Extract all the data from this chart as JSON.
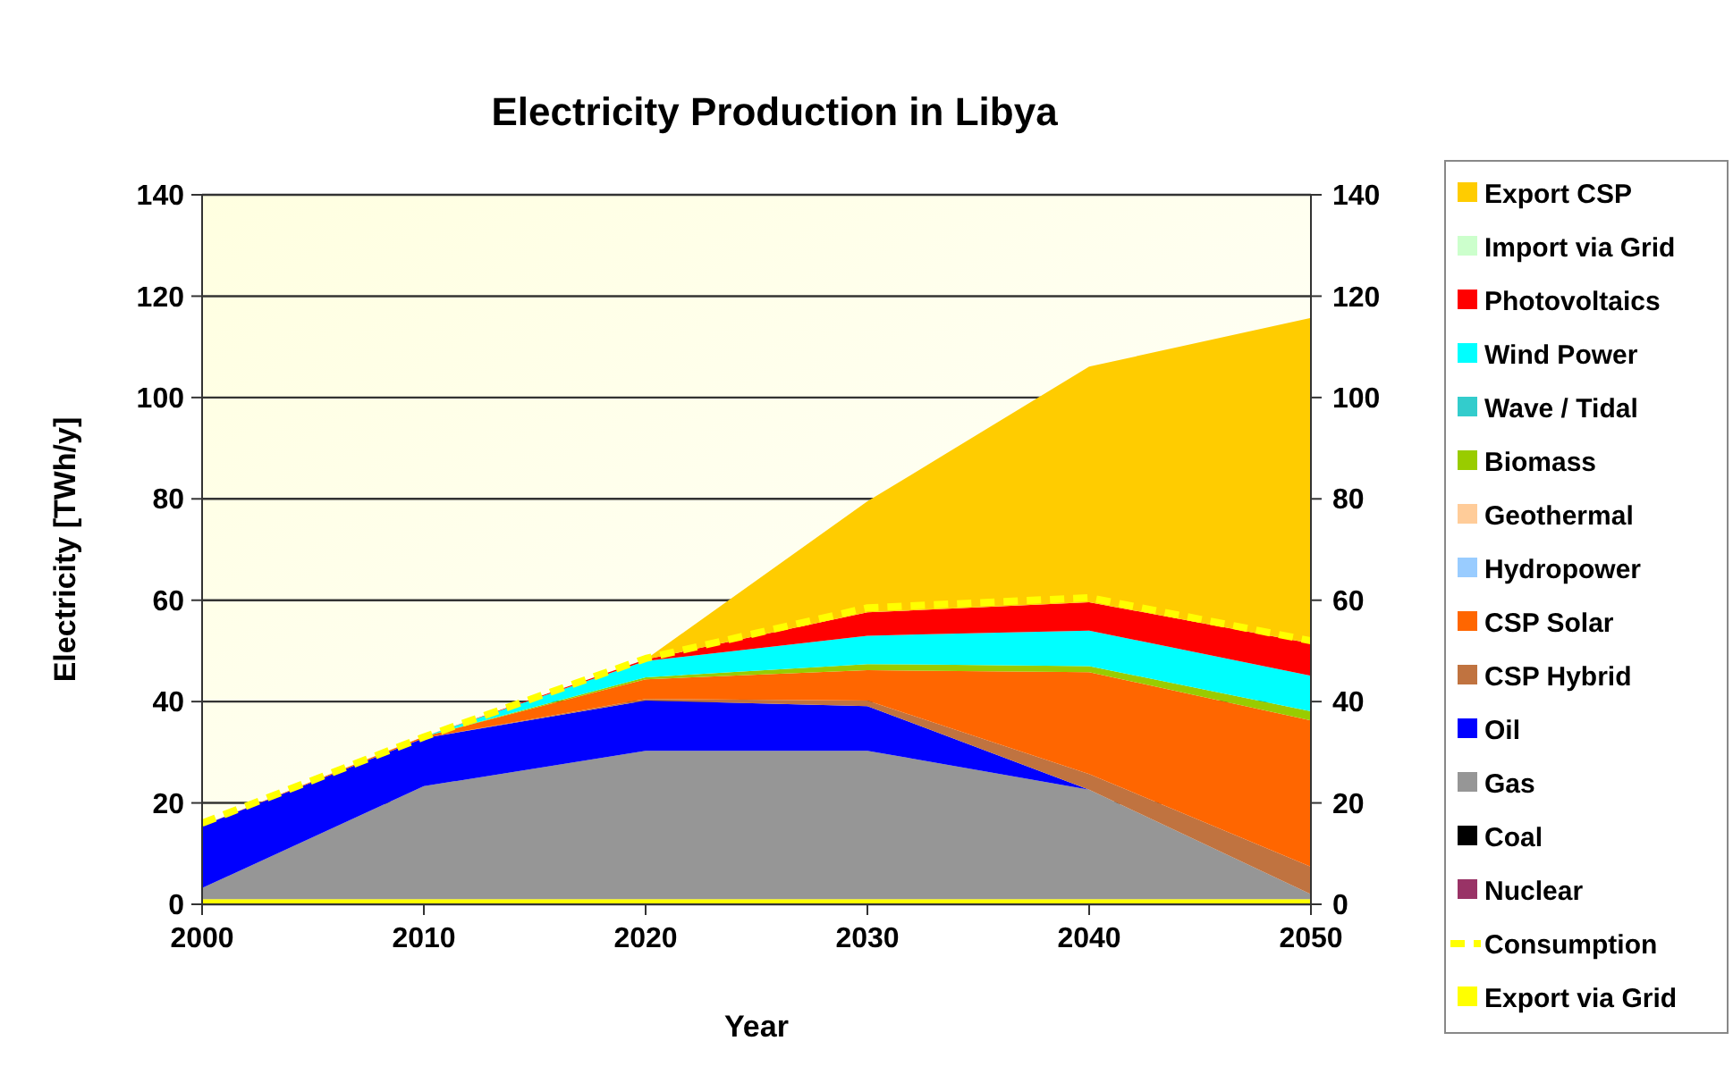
{
  "chart_data": {
    "type": "area",
    "stacked": true,
    "title": "Electricity Production in Libya",
    "xlabel": "Year",
    "ylabel": "Electricity [TWh/y]",
    "x": [
      2000,
      2010,
      2020,
      2030,
      2040,
      2050
    ],
    "xlim": [
      2000,
      2050
    ],
    "xticks": [
      2000,
      2010,
      2020,
      2030,
      2040,
      2050
    ],
    "ylim": [
      0,
      140
    ],
    "yticks": [
      0,
      20,
      40,
      60,
      80,
      100,
      120,
      140
    ],
    "y2lim": [
      0,
      140
    ],
    "y2ticks": [
      0,
      20,
      40,
      60,
      80,
      100,
      120,
      140
    ],
    "grid": "y",
    "legend": "right",
    "series": [
      {
        "name": "Export via Grid",
        "color": "#ffff00",
        "values": [
          1,
          1,
          1,
          1,
          1,
          1
        ]
      },
      {
        "name": "Nuclear",
        "color": "#993366",
        "values": [
          null,
          null,
          null,
          null,
          null,
          null
        ]
      },
      {
        "name": "Coal",
        "color": "#000000",
        "values": [
          null,
          null,
          null,
          null,
          null,
          null
        ]
      },
      {
        "name": "Gas",
        "color": "#969696",
        "values": [
          2.2,
          22.3,
          29.3,
          29.3,
          21.6,
          1
        ]
      },
      {
        "name": "Oil",
        "color": "#0000ff",
        "values": [
          12.3,
          9.5,
          9.9,
          8.8,
          0,
          null
        ]
      },
      {
        "name": "CSP Hybrid",
        "color": "#c07340",
        "values": [
          null,
          0,
          0.3,
          1.1,
          3.1,
          5.4
        ]
      },
      {
        "name": "CSP Solar",
        "color": "#ff6600",
        "values": [
          0,
          0.3,
          3.9,
          6,
          20.1,
          28.9
        ]
      },
      {
        "name": "Hydropower",
        "color": "#99ccff",
        "values": [
          null,
          null,
          null,
          null,
          null,
          null
        ]
      },
      {
        "name": "Geothermal",
        "color": "#ffcc99",
        "values": [
          null,
          null,
          null,
          null,
          null,
          null
        ]
      },
      {
        "name": "Biomass",
        "color": "#99cc00",
        "values": [
          null,
          0,
          0.4,
          1.2,
          1.2,
          1.8
        ]
      },
      {
        "name": "Wave / Tidal",
        "color": "#33cccc",
        "values": [
          null,
          null,
          null,
          null,
          null,
          null
        ]
      },
      {
        "name": "Wind Power",
        "color": "#00ffff",
        "values": [
          null,
          0,
          3.2,
          5.6,
          7,
          7
        ]
      },
      {
        "name": "Photovoltaics",
        "color": "#ff0000",
        "values": [
          null,
          0,
          0.3,
          4.6,
          5.6,
          6.4
        ]
      },
      {
        "name": "Import via Grid",
        "color": "#ccffcc",
        "values": [
          null,
          null,
          null,
          null,
          null,
          null
        ]
      },
      {
        "name": "Export CSP",
        "color": "#ffcc00",
        "values": [
          null,
          null,
          0,
          21.9,
          46.5,
          64.2
        ]
      },
      {
        "name": "Consumption",
        "type": "line",
        "line_style": "dashed",
        "color": "#ffff00",
        "values": [
          16,
          33,
          48.5,
          58.5,
          60.5,
          52
        ]
      }
    ]
  }
}
